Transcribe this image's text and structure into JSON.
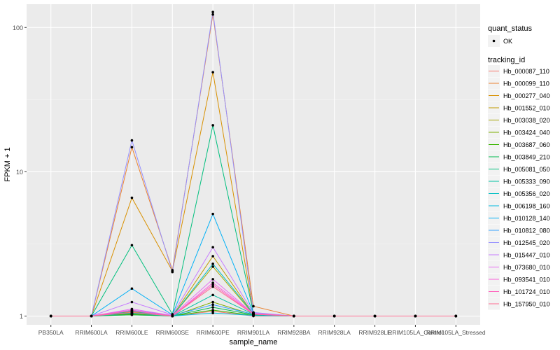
{
  "chart_data": {
    "type": "line",
    "xlabel": "sample_name",
    "ylabel": "FPKM + 1",
    "y_scale": "log10",
    "ylim": [
      0.87,
      145
    ],
    "y_ticks": [
      1,
      10,
      100
    ],
    "y_tick_labels": [
      "1",
      "10",
      "100"
    ],
    "categories": [
      "PB350LA",
      "RRIM600LA",
      "RRIM600LE",
      "RRIM600SE",
      "RRIM600PE",
      "RRIM901LA",
      "RRIM928BA",
      "RRIM928LA",
      "RRIM928LE",
      "RRIM105LA_Control",
      "RRIM105LA_Stressed"
    ],
    "panel_background": "#EBEBEB",
    "grid": true,
    "legend_position": "right",
    "legend_shape": {
      "title": "quant_status",
      "entries": [
        {
          "label": "OK",
          "marker": "point",
          "color": "#000000"
        }
      ]
    },
    "legend_color": {
      "title": "tracking_id"
    },
    "series": [
      {
        "name": "Hb_000087_110",
        "color": "#F8766D",
        "values": [
          1,
          1,
          1.02,
          1,
          1.08,
          1,
          1,
          1,
          1,
          1,
          1
        ]
      },
      {
        "name": "Hb_000099_110",
        "color": "#EA8331",
        "values": [
          1,
          1,
          14.8,
          2.08,
          123,
          1.17,
          1,
          1,
          1,
          1,
          1
        ]
      },
      {
        "name": "Hb_000277_040",
        "color": "#D89000",
        "values": [
          1,
          1,
          6.6,
          2.05,
          49,
          1.05,
          1,
          1,
          1,
          1,
          1
        ]
      },
      {
        "name": "Hb_001552_010",
        "color": "#C09B00",
        "values": [
          1,
          1,
          1.07,
          1,
          2.6,
          1.03,
          1,
          1,
          1,
          1,
          1
        ]
      },
      {
        "name": "Hb_003038_020",
        "color": "#A3A500",
        "values": [
          1,
          1,
          1.05,
          1,
          2.2,
          1.03,
          1,
          1,
          1,
          1,
          1
        ]
      },
      {
        "name": "Hb_003424_040",
        "color": "#7CAE00",
        "values": [
          1,
          1,
          1.03,
          1,
          1.25,
          1.02,
          1,
          1,
          1,
          1,
          1
        ]
      },
      {
        "name": "Hb_003687_060",
        "color": "#39B600",
        "values": [
          1,
          1,
          1.04,
          1,
          1.1,
          1.01,
          1,
          1,
          1,
          1,
          1
        ]
      },
      {
        "name": "Hb_003849_210",
        "color": "#00BB4E",
        "values": [
          1,
          1,
          1.02,
          1,
          1.15,
          1.02,
          1,
          1,
          1,
          1,
          1
        ]
      },
      {
        "name": "Hb_005081_050",
        "color": "#00BF7D",
        "values": [
          1,
          1,
          3.1,
          1.03,
          21,
          1.05,
          1,
          1,
          1,
          1,
          1
        ]
      },
      {
        "name": "Hb_005333_090",
        "color": "#00C1A3",
        "values": [
          1,
          1,
          1.05,
          1,
          1.4,
          1.03,
          1,
          1,
          1,
          1,
          1
        ]
      },
      {
        "name": "Hb_005356_020",
        "color": "#00BFC4",
        "values": [
          1,
          1,
          1.08,
          1,
          2.3,
          1.04,
          1,
          1,
          1,
          1,
          1
        ]
      },
      {
        "name": "Hb_006198_160",
        "color": "#00BAE0",
        "values": [
          1,
          1,
          1.05,
          1,
          1.05,
          1.01,
          1,
          1,
          1,
          1,
          1
        ]
      },
      {
        "name": "Hb_010128_140",
        "color": "#00B0F6",
        "values": [
          1,
          1,
          1.55,
          1.02,
          5.1,
          1.05,
          1,
          1,
          1,
          1,
          1
        ]
      },
      {
        "name": "Hb_010812_080",
        "color": "#35A2FF",
        "values": [
          1,
          1,
          1.1,
          1.01,
          1.2,
          1.03,
          1,
          1,
          1,
          1,
          1
        ]
      },
      {
        "name": "Hb_012545_020",
        "color": "#9590FF",
        "values": [
          1,
          1,
          16.5,
          2.02,
          128,
          1.06,
          1,
          1,
          1,
          1,
          1
        ]
      },
      {
        "name": "Hb_015447_010",
        "color": "#C77CFF",
        "values": [
          1,
          1,
          1.25,
          1.02,
          3.0,
          1.05,
          1,
          1,
          1,
          1,
          1
        ]
      },
      {
        "name": "Hb_073680_010",
        "color": "#E76BF3",
        "values": [
          1,
          1,
          1.12,
          1.01,
          1.8,
          1.04,
          1,
          1,
          1,
          1,
          1
        ]
      },
      {
        "name": "Hb_093541_010",
        "color": "#FA62DB",
        "values": [
          1,
          1,
          1.1,
          1,
          1.7,
          1.04,
          1,
          1,
          1,
          1,
          1
        ]
      },
      {
        "name": "Hb_101724_010",
        "color": "#FF62BC",
        "values": [
          1,
          1,
          1.09,
          1,
          1.65,
          1.03,
          1,
          1,
          1,
          1,
          1
        ]
      },
      {
        "name": "Hb_157950_010",
        "color": "#FF6C91",
        "values": [
          1,
          1,
          1.06,
          1,
          1.6,
          1.03,
          1,
          1,
          1,
          1,
          1
        ]
      }
    ]
  }
}
